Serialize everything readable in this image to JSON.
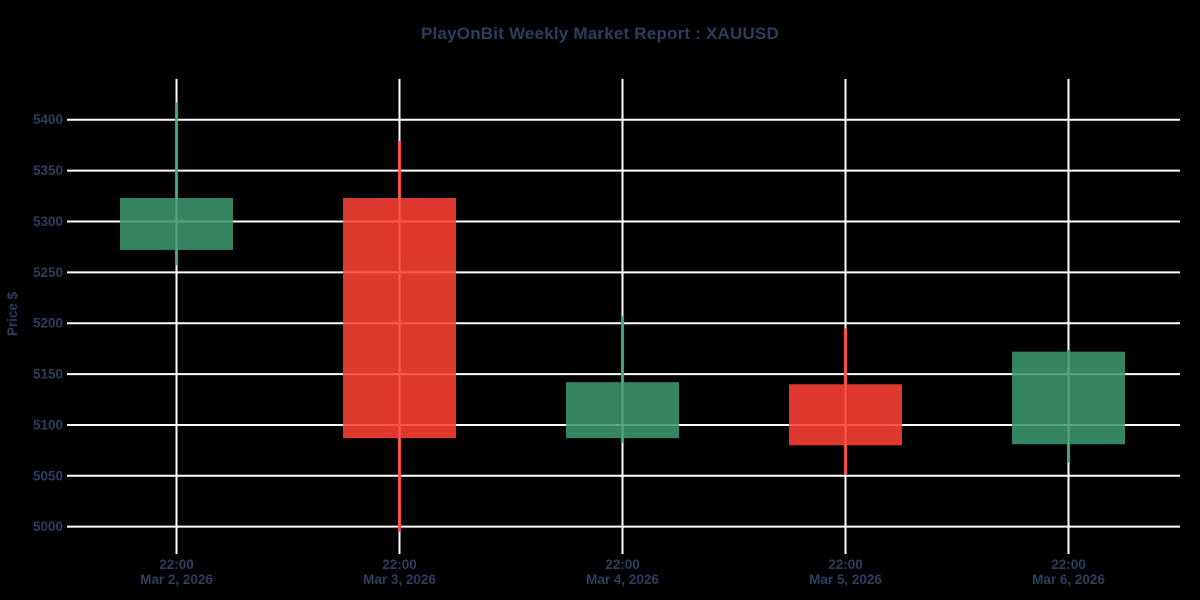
{
  "title": "PlayOnBit Weekly Market Report : XAUUSD",
  "chart_data": {
    "type": "candlestick",
    "title": "PlayOnBit Weekly Market Report : XAUUSD",
    "xlabel": "",
    "ylabel": "Price $",
    "grid": true,
    "legend": false,
    "ylim": [
      4982,
      5440
    ],
    "y_ticks": [
      5000,
      5050,
      5100,
      5150,
      5200,
      5250,
      5300,
      5350,
      5400
    ],
    "x_ticks": [
      {
        "time": "22:00",
        "date": "Mar 2, 2026"
      },
      {
        "time": "22:00",
        "date": "Mar 3, 2026"
      },
      {
        "time": "22:00",
        "date": "Mar 4, 2026"
      },
      {
        "time": "22:00",
        "date": "Mar 5, 2026"
      },
      {
        "time": "22:00",
        "date": "Mar 6, 2026"
      }
    ],
    "ohlc": [
      {
        "date": "Mar 2, 2026",
        "time": "22:00",
        "open": 5272,
        "high": 5417,
        "low": 5257,
        "close": 5323,
        "direction": "increasing"
      },
      {
        "date": "Mar 3, 2026",
        "time": "22:00",
        "open": 5323,
        "high": 5379,
        "low": 4995,
        "close": 5087,
        "direction": "decreasing"
      },
      {
        "date": "Mar 4, 2026",
        "time": "22:00",
        "open": 5087,
        "high": 5207,
        "low": 5082,
        "close": 5142,
        "direction": "increasing"
      },
      {
        "date": "Mar 5, 2026",
        "time": "22:00",
        "open": 5140,
        "high": 5195,
        "low": 5051,
        "close": 5080,
        "direction": "decreasing"
      },
      {
        "date": "Mar 6, 2026",
        "time": "22:00",
        "open": 5081,
        "high": 5174,
        "low": 5063,
        "close": 5172,
        "direction": "increasing"
      }
    ],
    "colors": {
      "background": "#000000",
      "grid": "#ffffff",
      "text": "#2a3f5f",
      "increasing": "#3D9970",
      "decreasing": "#FF4136"
    }
  }
}
